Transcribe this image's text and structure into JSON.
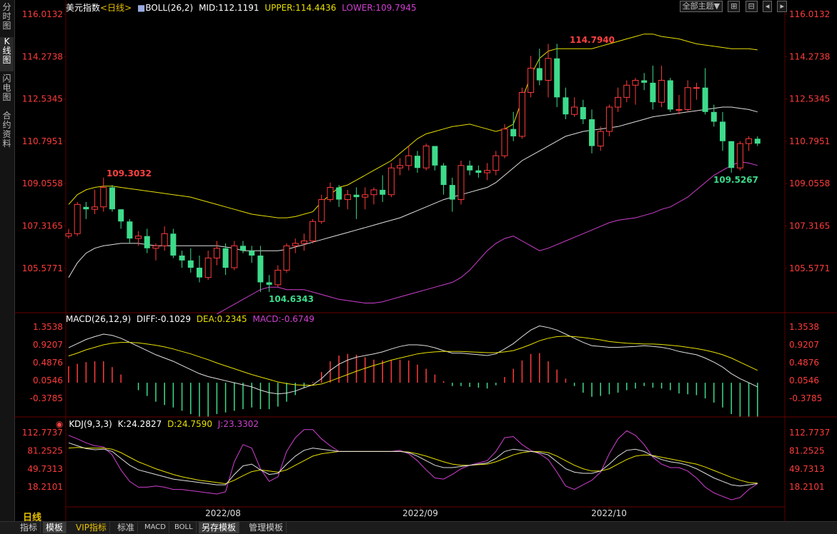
{
  "left_tabs": [
    "分时图",
    "K线图",
    "闪电图",
    "合约资料"
  ],
  "main_header": {
    "name": "美元指数",
    "period": "<日线>",
    "indicator": "BOLL(26,2)",
    "mid": "MID:112.1191",
    "upper": "UPPER:114.4436",
    "lower": "LOWER:109.7945"
  },
  "toolbar": {
    "theme_select": "全部主题▼",
    "icons": [
      "zoom-in-icon",
      "zoom-out-icon",
      "arrow-left-icon",
      "arrow-right-icon"
    ]
  },
  "price_axis": [
    "116.0132",
    "114.2738",
    "112.5345",
    "110.7951",
    "109.0558",
    "107.3165",
    "105.5771"
  ],
  "annotations": {
    "high": "114.7940",
    "left_high": "109.3032",
    "low": "104.6343",
    "recent_low": "109.5267"
  },
  "macd_header": {
    "name": "MACD(26,12,9)",
    "diff": "DIFF:-0.1029",
    "dea": "DEA:0.2345",
    "macd": "MACD:-0.6749"
  },
  "macd_axis": [
    "1.3538",
    "0.9207",
    "0.4876",
    "0.0546",
    "-0.3785"
  ],
  "kdj_header": {
    "name": "KDJ(9,3,3)",
    "k": "K:24.2827",
    "d": "D:24.7590",
    "j": "J:23.3302"
  },
  "kdj_axis": [
    "112.7737",
    "81.2525",
    "49.7313",
    "18.2101"
  ],
  "x_axis": [
    "2022/08",
    "2022/09",
    "2022/10"
  ],
  "period_label": "日线",
  "bottom_tabs": [
    "指标",
    "模板",
    "VIP指标",
    "标准",
    "MACD",
    "BOLL",
    "另存模板",
    "管理模板"
  ],
  "colors": {
    "up": "#ff3b3b",
    "down": "#3ddb8b",
    "axis_text": "#ff3b3b",
    "mid": "#e0e0e0",
    "upper": "#e8e000",
    "lower": "#d040d0",
    "dea": "#e8e000",
    "macd_label": "#d040d0",
    "grid": "#5a0000",
    "highlabel": "#ff4040",
    "lowlabel": "#3ddb8b"
  },
  "candles": [
    [
      106.9,
      107.2,
      106.8,
      107.0
    ],
    [
      107.0,
      108.3,
      106.9,
      108.2
    ],
    [
      108.1,
      108.3,
      107.6,
      108.0
    ],
    [
      108.0,
      108.8,
      107.8,
      108.1
    ],
    [
      108.1,
      109.3,
      107.9,
      108.9
    ],
    [
      108.9,
      109.0,
      107.9,
      108.0
    ],
    [
      108.0,
      108.0,
      107.2,
      107.5
    ],
    [
      107.5,
      107.6,
      106.6,
      106.8
    ],
    [
      106.8,
      107.1,
      106.5,
      106.9
    ],
    [
      106.9,
      107.2,
      106.2,
      106.4
    ],
    [
      106.4,
      106.6,
      105.9,
      106.5
    ],
    [
      106.5,
      107.3,
      106.3,
      107.0
    ],
    [
      107.0,
      107.2,
      106.0,
      106.1
    ],
    [
      106.1,
      106.3,
      105.6,
      105.9
    ],
    [
      105.9,
      106.4,
      105.4,
      105.6
    ],
    [
      105.6,
      106.1,
      105.0,
      105.2
    ],
    [
      105.2,
      106.3,
      105.1,
      106.0
    ],
    [
      106.0,
      106.7,
      105.7,
      106.4
    ],
    [
      106.4,
      106.6,
      105.3,
      105.6
    ],
    [
      105.6,
      106.7,
      105.5,
      106.5
    ],
    [
      106.5,
      106.7,
      106.2,
      106.3
    ],
    [
      106.3,
      106.5,
      105.8,
      106.1
    ],
    [
      106.1,
      106.5,
      104.6,
      105.0
    ],
    [
      105.0,
      105.3,
      104.6,
      104.9
    ],
    [
      104.9,
      105.7,
      104.8,
      105.5
    ],
    [
      105.5,
      106.6,
      105.4,
      106.5
    ],
    [
      106.5,
      106.8,
      106.2,
      106.6
    ],
    [
      106.6,
      107.0,
      106.3,
      106.7
    ],
    [
      106.7,
      107.6,
      106.6,
      107.5
    ],
    [
      107.5,
      108.6,
      107.4,
      108.4
    ],
    [
      108.4,
      109.1,
      108.3,
      108.9
    ],
    [
      108.9,
      109.0,
      108.1,
      108.4
    ],
    [
      108.4,
      108.8,
      108.0,
      108.6
    ],
    [
      108.6,
      108.9,
      107.6,
      108.5
    ],
    [
      108.5,
      108.9,
      108.0,
      108.6
    ],
    [
      108.6,
      108.9,
      108.2,
      108.8
    ],
    [
      108.8,
      109.4,
      108.3,
      108.6
    ],
    [
      108.6,
      109.9,
      108.5,
      109.7
    ],
    [
      109.7,
      110.1,
      109.4,
      109.8
    ],
    [
      109.8,
      110.6,
      109.6,
      110.2
    ],
    [
      110.2,
      110.4,
      109.5,
      109.7
    ],
    [
      109.7,
      110.7,
      109.6,
      110.6
    ],
    [
      110.6,
      110.6,
      109.6,
      109.8
    ],
    [
      109.8,
      109.9,
      108.6,
      109.0
    ],
    [
      109.0,
      109.3,
      107.9,
      108.4
    ],
    [
      108.4,
      110.0,
      108.2,
      109.8
    ],
    [
      109.8,
      110.0,
      109.4,
      109.6
    ],
    [
      109.6,
      109.8,
      109.3,
      109.5
    ],
    [
      109.5,
      109.9,
      109.2,
      109.6
    ],
    [
      109.6,
      110.4,
      109.4,
      110.2
    ],
    [
      110.2,
      111.5,
      110.1,
      111.3
    ],
    [
      111.3,
      112.0,
      110.8,
      111.0
    ],
    [
      111.0,
      113.0,
      110.9,
      112.8
    ],
    [
      112.8,
      114.3,
      112.6,
      113.8
    ],
    [
      113.8,
      114.6,
      113.1,
      113.3
    ],
    [
      113.3,
      114.8,
      112.6,
      114.2
    ],
    [
      114.2,
      114.8,
      112.2,
      112.6
    ],
    [
      112.6,
      113.0,
      111.7,
      111.9
    ],
    [
      111.9,
      112.6,
      111.8,
      112.2
    ],
    [
      112.2,
      112.5,
      111.5,
      111.7
    ],
    [
      111.7,
      112.1,
      110.3,
      110.6
    ],
    [
      110.6,
      111.4,
      110.4,
      111.2
    ],
    [
      111.2,
      112.3,
      111.0,
      112.2
    ],
    [
      112.2,
      113.0,
      112.0,
      112.6
    ],
    [
      112.6,
      113.3,
      112.4,
      113.1
    ],
    [
      113.1,
      113.4,
      112.3,
      113.3
    ],
    [
      113.3,
      113.6,
      112.9,
      113.2
    ],
    [
      113.2,
      113.9,
      112.1,
      112.4
    ],
    [
      112.4,
      113.9,
      112.2,
      113.3
    ],
    [
      113.3,
      113.4,
      112.0,
      112.1
    ],
    [
      112.1,
      112.7,
      111.9,
      112.1
    ],
    [
      112.1,
      113.3,
      112.0,
      113.0
    ],
    [
      113.0,
      113.2,
      112.5,
      113.0
    ],
    [
      113.0,
      113.8,
      111.9,
      112.0
    ],
    [
      112.0,
      112.3,
      111.4,
      111.6
    ],
    [
      111.6,
      112.0,
      110.4,
      110.8
    ],
    [
      110.8,
      110.8,
      109.5,
      109.7
    ],
    [
      109.7,
      110.8,
      109.6,
      110.7
    ],
    [
      110.7,
      111.0,
      110.4,
      110.9
    ],
    [
      110.9,
      111.0,
      110.6,
      110.7
    ]
  ],
  "boll_mid": [
    105.2,
    105.8,
    106.2,
    106.4,
    106.5,
    106.55,
    106.6,
    106.6,
    106.6,
    106.55,
    106.5,
    106.5,
    106.5,
    106.5,
    106.5,
    106.5,
    106.5,
    106.5,
    106.45,
    106.4,
    106.3,
    106.3,
    106.3,
    106.3,
    106.3,
    106.35,
    106.45,
    106.55,
    106.65,
    106.75,
    106.85,
    106.95,
    107.05,
    107.15,
    107.25,
    107.35,
    107.45,
    107.55,
    107.65,
    107.8,
    107.95,
    108.1,
    108.25,
    108.4,
    108.5,
    108.6,
    108.7,
    108.8,
    108.9,
    109.1,
    109.4,
    109.7,
    110.0,
    110.2,
    110.4,
    110.6,
    110.8,
    111.0,
    111.1,
    111.2,
    111.25,
    111.3,
    111.35,
    111.4,
    111.5,
    111.6,
    111.7,
    111.8,
    111.85,
    111.9,
    111.95,
    112.0,
    112.05,
    112.1,
    112.15,
    112.2,
    112.2,
    112.15,
    112.1,
    112.0
  ],
  "boll_upper": [
    108.2,
    108.6,
    108.8,
    108.9,
    108.95,
    108.95,
    108.9,
    108.85,
    108.8,
    108.75,
    108.7,
    108.65,
    108.6,
    108.55,
    108.5,
    108.4,
    108.3,
    108.2,
    108.1,
    108.0,
    107.9,
    107.8,
    107.75,
    107.7,
    107.65,
    107.65,
    107.7,
    107.8,
    107.9,
    108.3,
    108.6,
    108.9,
    109.0,
    109.2,
    109.4,
    109.6,
    109.8,
    110.0,
    110.3,
    110.6,
    110.9,
    111.1,
    111.2,
    111.3,
    111.4,
    111.45,
    111.5,
    111.4,
    111.3,
    111.2,
    111.3,
    111.5,
    112.5,
    113.5,
    114.2,
    114.5,
    114.6,
    114.6,
    114.6,
    114.6,
    114.6,
    114.7,
    114.8,
    114.9,
    115.0,
    115.1,
    115.2,
    115.2,
    115.1,
    115.05,
    115.0,
    114.9,
    114.8,
    114.75,
    114.7,
    114.65,
    114.6,
    114.6,
    114.6,
    114.55
  ],
  "boll_lower": [
    null,
    null,
    null,
    null,
    null,
    null,
    null,
    null,
    null,
    null,
    null,
    null,
    null,
    null,
    null,
    null,
    null,
    103.7,
    103.9,
    104.1,
    104.3,
    104.5,
    104.7,
    104.8,
    104.8,
    104.7,
    104.7,
    104.7,
    104.6,
    104.5,
    104.4,
    104.3,
    104.25,
    104.2,
    104.15,
    104.15,
    104.2,
    104.3,
    104.4,
    104.5,
    104.6,
    104.7,
    104.8,
    104.9,
    105.0,
    105.2,
    105.5,
    105.9,
    106.3,
    106.6,
    106.8,
    106.9,
    106.7,
    106.5,
    106.3,
    106.4,
    106.55,
    106.7,
    106.85,
    107.0,
    107.15,
    107.3,
    107.45,
    107.55,
    107.6,
    107.65,
    107.75,
    107.85,
    108.0,
    108.1,
    108.3,
    108.5,
    108.8,
    109.1,
    109.4,
    109.6,
    109.8,
    109.95,
    109.9,
    109.8
  ],
  "macd_diff": [
    0.85,
    0.95,
    1.05,
    1.12,
    1.18,
    1.15,
    1.08,
    0.98,
    0.88,
    0.78,
    0.68,
    0.6,
    0.52,
    0.42,
    0.32,
    0.22,
    0.15,
    0.1,
    0.05,
    0.0,
    -0.05,
    -0.1,
    -0.18,
    -0.24,
    -0.27,
    -0.25,
    -0.2,
    -0.12,
    -0.05,
    0.1,
    0.3,
    0.45,
    0.55,
    0.62,
    0.66,
    0.7,
    0.75,
    0.82,
    0.88,
    0.92,
    0.92,
    0.9,
    0.85,
    0.78,
    0.72,
    0.72,
    0.7,
    0.68,
    0.66,
    0.7,
    0.82,
    0.95,
    1.12,
    1.28,
    1.38,
    1.34,
    1.28,
    1.18,
    1.08,
    0.98,
    0.9,
    0.88,
    0.86,
    0.86,
    0.87,
    0.88,
    0.9,
    0.88,
    0.86,
    0.82,
    0.76,
    0.72,
    0.68,
    0.6,
    0.5,
    0.38,
    0.22,
    0.1,
    0.0,
    -0.1
  ],
  "macd_dea": [
    0.65,
    0.72,
    0.8,
    0.86,
    0.92,
    0.96,
    0.98,
    0.98,
    0.97,
    0.94,
    0.91,
    0.87,
    0.82,
    0.76,
    0.7,
    0.63,
    0.56,
    0.48,
    0.41,
    0.34,
    0.27,
    0.2,
    0.14,
    0.08,
    0.02,
    -0.02,
    -0.05,
    -0.06,
    -0.06,
    -0.03,
    0.04,
    0.12,
    0.2,
    0.28,
    0.35,
    0.42,
    0.48,
    0.55,
    0.6,
    0.65,
    0.7,
    0.73,
    0.75,
    0.76,
    0.76,
    0.76,
    0.75,
    0.74,
    0.73,
    0.73,
    0.75,
    0.78,
    0.85,
    0.93,
    1.02,
    1.08,
    1.12,
    1.13,
    1.12,
    1.1,
    1.07,
    1.04,
    1.0,
    0.98,
    0.96,
    0.95,
    0.94,
    0.94,
    0.93,
    0.91,
    0.89,
    0.86,
    0.83,
    0.79,
    0.74,
    0.68,
    0.6,
    0.5,
    0.4,
    0.3
  ],
  "macd_hist": [
    0.4,
    0.46,
    0.5,
    0.52,
    0.52,
    0.38,
    0.2,
    0.0,
    -0.18,
    -0.32,
    -0.46,
    -0.54,
    -0.6,
    -0.68,
    -0.76,
    -0.82,
    -0.82,
    -0.76,
    -0.72,
    -0.68,
    -0.64,
    -0.6,
    -0.64,
    -0.64,
    -0.58,
    -0.46,
    -0.3,
    -0.12,
    0.02,
    0.26,
    0.52,
    0.66,
    0.7,
    0.68,
    0.62,
    0.56,
    0.54,
    0.54,
    0.56,
    0.54,
    0.44,
    0.34,
    0.2,
    0.04,
    -0.08,
    -0.08,
    -0.1,
    -0.12,
    -0.14,
    -0.06,
    0.14,
    0.34,
    0.54,
    0.7,
    0.72,
    0.52,
    0.32,
    0.1,
    -0.08,
    -0.24,
    -0.34,
    -0.32,
    -0.28,
    -0.24,
    -0.18,
    -0.14,
    -0.08,
    -0.12,
    -0.14,
    -0.18,
    -0.26,
    -0.28,
    -0.3,
    -0.38,
    -0.48,
    -0.6,
    -0.76,
    -0.82,
    -0.82,
    -0.82
  ],
  "kdj_k": [
    95,
    90,
    85,
    83,
    84,
    80,
    68,
    56,
    48,
    44,
    40,
    36,
    32,
    30,
    28,
    26,
    24,
    22,
    22,
    40,
    55,
    58,
    48,
    40,
    42,
    58,
    72,
    82,
    86,
    84,
    82,
    80,
    80,
    80,
    80,
    80,
    80,
    80,
    80,
    78,
    72,
    64,
    56,
    52,
    52,
    54,
    56,
    58,
    60,
    68,
    80,
    84,
    82,
    80,
    78,
    74,
    62,
    50,
    44,
    42,
    42,
    46,
    58,
    72,
    82,
    84,
    80,
    72,
    66,
    62,
    60,
    56,
    50,
    42,
    34,
    28,
    22,
    20,
    22,
    24
  ],
  "kdj_d": [
    86,
    87,
    86,
    86,
    86,
    84,
    78,
    70,
    62,
    56,
    50,
    45,
    40,
    36,
    33,
    30,
    28,
    26,
    24,
    30,
    38,
    45,
    48,
    46,
    44,
    48,
    56,
    64,
    72,
    76,
    78,
    80,
    80,
    80,
    80,
    80,
    80,
    80,
    80,
    79,
    76,
    72,
    67,
    62,
    58,
    56,
    56,
    57,
    58,
    62,
    68,
    74,
    78,
    80,
    80,
    78,
    72,
    64,
    56,
    50,
    46,
    46,
    50,
    58,
    66,
    72,
    74,
    73,
    70,
    67,
    64,
    61,
    58,
    53,
    47,
    41,
    35,
    30,
    26,
    25
  ],
  "kdj_j": [
    108,
    102,
    95,
    90,
    88,
    74,
    48,
    28,
    18,
    18,
    20,
    18,
    14,
    14,
    12,
    10,
    8,
    6,
    10,
    62,
    92,
    86,
    50,
    28,
    36,
    80,
    104,
    118,
    118,
    102,
    90,
    80,
    80,
    80,
    80,
    80,
    80,
    80,
    82,
    76,
    64,
    48,
    34,
    32,
    40,
    50,
    56,
    60,
    64,
    80,
    104,
    106,
    92,
    82,
    76,
    66,
    44,
    20,
    14,
    22,
    30,
    44,
    76,
    102,
    116,
    108,
    92,
    70,
    58,
    52,
    52,
    46,
    34,
    18,
    8,
    2,
    -4,
    0,
    14,
    24
  ]
}
